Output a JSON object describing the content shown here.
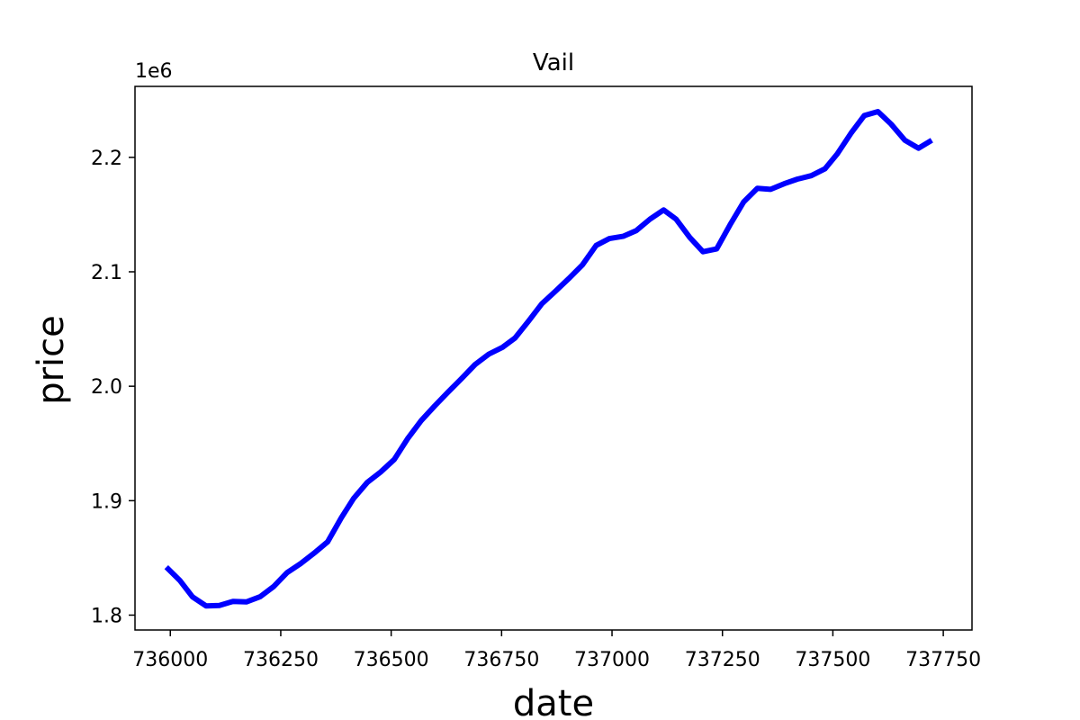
{
  "chart_data": {
    "type": "line",
    "title": "Vail",
    "xlabel": "date",
    "ylabel": "price",
    "y_offset_label": "1e6",
    "xlim": [
      735920,
      737815
    ],
    "ylim": [
      1787000,
      2262000
    ],
    "xticks": [
      736000,
      736250,
      736500,
      736750,
      737000,
      737250,
      737500,
      737750
    ],
    "xtick_labels": [
      "736000",
      "736250",
      "736500",
      "736750",
      "737000",
      "737250",
      "737500",
      "737750"
    ],
    "yticks": [
      1800000,
      1900000,
      2000000,
      2100000,
      2200000
    ],
    "ytick_labels": [
      "1.8",
      "1.9",
      "2.0",
      "2.1",
      "2.2"
    ],
    "grid": false,
    "series": [
      {
        "color": "#0000ff",
        "x": [
          735991,
          736022,
          736050,
          736081,
          736111,
          736142,
          736172,
          736203,
          736234,
          736264,
          736295,
          736325,
          736356,
          736387,
          736415,
          736446,
          736476,
          736507,
          736537,
          736568,
          736599,
          736629,
          736660,
          736690,
          736721,
          736752,
          736780,
          736811,
          736841,
          736872,
          736902,
          736933,
          736964,
          736994,
          737025,
          737055,
          737086,
          737117,
          737145,
          737176,
          737206,
          737237,
          737267,
          737298,
          737329,
          737359,
          737390,
          737420,
          737451,
          737482,
          737510,
          737541,
          737571,
          737602,
          737632,
          737663,
          737694,
          737724
        ],
        "y": [
          1842000,
          1830000,
          1816000,
          1808000,
          1808500,
          1812000,
          1811500,
          1816000,
          1825000,
          1837000,
          1845000,
          1854000,
          1864000,
          1885000,
          1902000,
          1916000,
          1925000,
          1936000,
          1954000,
          1970000,
          1983000,
          1995000,
          2007000,
          2019000,
          2028000,
          2034000,
          2042000,
          2057000,
          2072000,
          2083000,
          2094000,
          2106000,
          2123000,
          2129000,
          2131000,
          2136000,
          2146000,
          2154000,
          2146000,
          2130000,
          2117500,
          2120000,
          2141000,
          2161000,
          2173000,
          2172000,
          2177000,
          2181000,
          2184000,
          2190000,
          2203000,
          2221000,
          2236500,
          2240000,
          2229000,
          2215000,
          2208000,
          2215000
        ]
      }
    ]
  }
}
